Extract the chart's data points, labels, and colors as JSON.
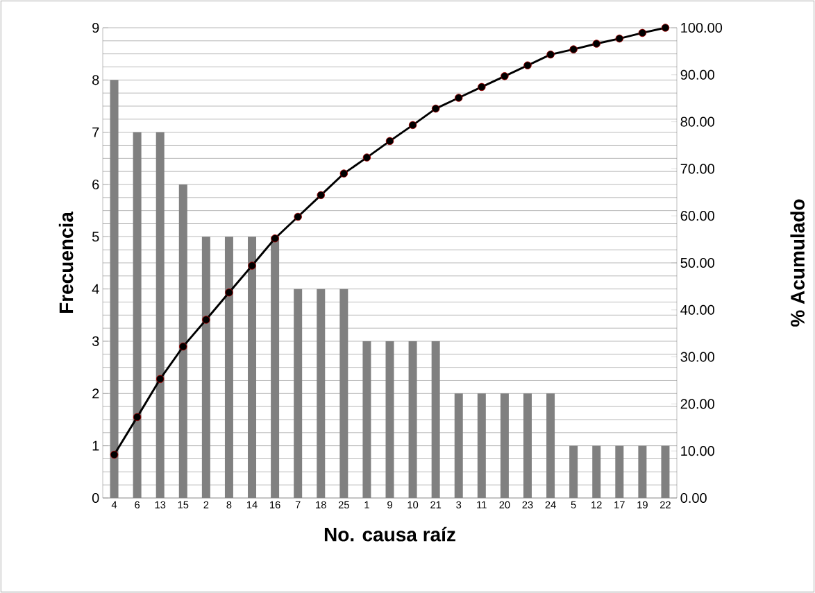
{
  "chart_data": {
    "type": "bar",
    "xlabel": "No. causa raíz",
    "ylabel": "Frecuencia",
    "y2label": "% Acumulado",
    "categories": [
      "4",
      "6",
      "13",
      "15",
      "2",
      "8",
      "14",
      "16",
      "7",
      "18",
      "25",
      "1",
      "9",
      "10",
      "21",
      "3",
      "11",
      "20",
      "23",
      "24",
      "5",
      "12",
      "17",
      "19",
      "22"
    ],
    "ylim": [
      0,
      9
    ],
    "yticks": [
      0,
      1,
      2,
      3,
      4,
      5,
      6,
      7,
      8,
      9
    ],
    "y2lim": [
      0,
      100
    ],
    "y2ticks": [
      {
        "value": 0,
        "label": "0.00"
      },
      {
        "value": 10,
        "label": "10.00"
      },
      {
        "value": 20,
        "label": "20.00"
      },
      {
        "value": 30,
        "label": "30.00"
      },
      {
        "value": 40,
        "label": "40.00"
      },
      {
        "value": 50,
        "label": "50.00"
      },
      {
        "value": 60,
        "label": "60.00"
      },
      {
        "value": 70,
        "label": "70.00"
      },
      {
        "value": 80,
        "label": "80.00"
      },
      {
        "value": 90,
        "label": "90.00"
      },
      {
        "value": 100,
        "label": "100.00"
      }
    ],
    "grid": "y",
    "marker": "circle",
    "line_style": "solid",
    "series": [
      {
        "color": "#808080",
        "values": [
          8,
          7,
          7,
          6,
          5,
          5,
          5,
          5,
          4,
          4,
          4,
          3,
          3,
          3,
          3,
          2,
          2,
          2,
          2,
          2,
          1,
          1,
          1,
          1,
          1
        ]
      },
      {
        "type": "line",
        "axis": "y2",
        "color": "#000000",
        "values": [
          9.2,
          17.2,
          25.3,
          32.2,
          37.9,
          43.7,
          49.4,
          55.2,
          59.8,
          64.4,
          69.0,
          72.4,
          75.9,
          79.3,
          82.8,
          85.1,
          87.4,
          89.7,
          92.0,
          94.3,
          95.4,
          96.6,
          97.7,
          98.9,
          100.0
        ]
      }
    ]
  }
}
